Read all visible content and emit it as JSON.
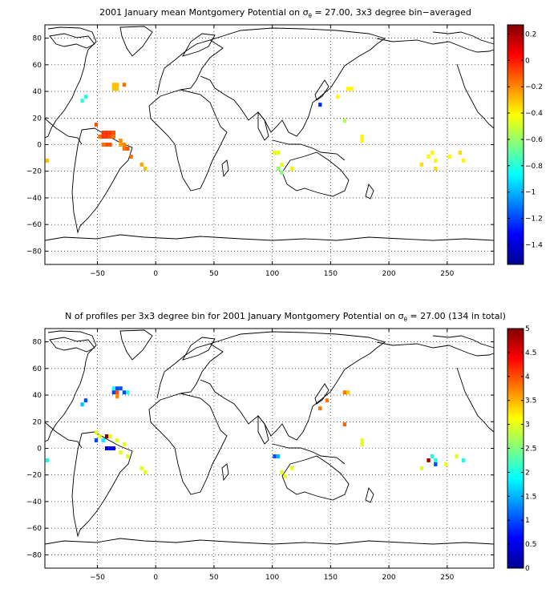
{
  "chart_data": [
    {
      "type": "heatmap",
      "title_pre": "2001 January mean Montgomery Potential on ",
      "title_sym": "σ",
      "title_sub": "θ",
      "title_post": " = 27.00, 3x3 degree bin−averaged",
      "xlim": [
        -95,
        290
      ],
      "ylim": [
        -90,
        90
      ],
      "xticks": [
        -50,
        0,
        50,
        100,
        150,
        200,
        250
      ],
      "xtick_labels": [
        "−50",
        "0",
        "50",
        "100",
        "150",
        "200",
        "250"
      ],
      "yticks": [
        80,
        60,
        40,
        20,
        0,
        -20,
        -40,
        -60,
        -80
      ],
      "ytick_labels": [
        "80",
        "60",
        "40",
        "20",
        "0",
        "−20",
        "−40",
        "−60",
        "−80"
      ],
      "grid": true,
      "colormap": "jet",
      "clim": [
        -1.55,
        0.27
      ],
      "colorbar_ticks": [
        0.2,
        0,
        -0.2,
        -0.4,
        -0.6,
        -0.8,
        -1,
        -1.2,
        -1.4
      ],
      "colorbar_labels": [
        "0.2",
        "0",
        "−0.2",
        "−0.4",
        "−0.6",
        "−0.8",
        "−1",
        "−1.2",
        "−1.4"
      ],
      "cells": [
        {
          "lon": -36,
          "lat": 45,
          "v": -0.3
        },
        {
          "lon": -33,
          "lat": 45,
          "v": -0.3
        },
        {
          "lon": -27,
          "lat": 45,
          "v": -0.15
        },
        {
          "lon": -36,
          "lat": 42,
          "v": -0.3
        },
        {
          "lon": -33,
          "lat": 42,
          "v": -0.3
        },
        {
          "lon": -60,
          "lat": 36,
          "v": -0.8
        },
        {
          "lon": -63,
          "lat": 33,
          "v": -0.8
        },
        {
          "lon": -51,
          "lat": 15,
          "v": -0.1
        },
        {
          "lon": -45,
          "lat": 9,
          "v": -0.05
        },
        {
          "lon": -42,
          "lat": 9,
          "v": -0.05
        },
        {
          "lon": -39,
          "lat": 9,
          "v": -0.05
        },
        {
          "lon": -36,
          "lat": 9,
          "v": -0.1
        },
        {
          "lon": -48,
          "lat": 6,
          "v": -0.15
        },
        {
          "lon": -45,
          "lat": 6,
          "v": -0.05
        },
        {
          "lon": -42,
          "lat": 6,
          "v": -0.05
        },
        {
          "lon": -39,
          "lat": 6,
          "v": -0.1
        },
        {
          "lon": -36,
          "lat": 6,
          "v": -0.15
        },
        {
          "lon": -45,
          "lat": 0,
          "v": -0.15
        },
        {
          "lon": -42,
          "lat": 0,
          "v": -0.1
        },
        {
          "lon": -39,
          "lat": 0,
          "v": -0.1
        },
        {
          "lon": -30,
          "lat": 3,
          "v": -0.2
        },
        {
          "lon": -27,
          "lat": 0,
          "v": -0.2
        },
        {
          "lon": -30,
          "lat": 0,
          "v": -0.25
        },
        {
          "lon": -27,
          "lat": -3,
          "v": -0.15
        },
        {
          "lon": -24,
          "lat": -3,
          "v": -0.1
        },
        {
          "lon": -21,
          "lat": -9,
          "v": -0.15
        },
        {
          "lon": -12,
          "lat": -15,
          "v": -0.25
        },
        {
          "lon": -9,
          "lat": -18,
          "v": -0.3
        },
        {
          "lon": -93,
          "lat": -12,
          "v": -0.3
        },
        {
          "lon": 141,
          "lat": 30,
          "v": -1.25
        },
        {
          "lon": 156,
          "lat": 36,
          "v": -0.4
        },
        {
          "lon": 165,
          "lat": 42,
          "v": -0.4
        },
        {
          "lon": 168,
          "lat": 42,
          "v": -0.4
        },
        {
          "lon": 162,
          "lat": 18,
          "v": -0.55
        },
        {
          "lon": 177,
          "lat": 6,
          "v": -0.4
        },
        {
          "lon": 177,
          "lat": 3,
          "v": -0.4
        },
        {
          "lon": 102,
          "lat": -6,
          "v": -0.45
        },
        {
          "lon": 105,
          "lat": -6,
          "v": -0.45
        },
        {
          "lon": 108,
          "lat": -15,
          "v": -0.45
        },
        {
          "lon": 105,
          "lat": -18,
          "v": -0.6
        },
        {
          "lon": 108,
          "lat": -21,
          "v": -0.65
        },
        {
          "lon": 117,
          "lat": -18,
          "v": -0.4
        },
        {
          "lon": 237,
          "lat": -6,
          "v": -0.4
        },
        {
          "lon": 234,
          "lat": -9,
          "v": -0.4
        },
        {
          "lon": 240,
          "lat": -12,
          "v": -0.4
        },
        {
          "lon": 228,
          "lat": -15,
          "v": -0.35
        },
        {
          "lon": 240,
          "lat": -18,
          "v": -0.35
        },
        {
          "lon": 252,
          "lat": -9,
          "v": -0.4
        },
        {
          "lon": 261,
          "lat": -6,
          "v": -0.35
        },
        {
          "lon": 264,
          "lat": -12,
          "v": -0.4
        }
      ]
    },
    {
      "type": "heatmap",
      "title_pre": "N of profiles per 3x3 degree bin for 2001 January Montgomery Potential on ",
      "title_sym": "σ",
      "title_sub": "θ",
      "title_post": " = 27.00 (134 in total)",
      "xlim": [
        -95,
        290
      ],
      "ylim": [
        -90,
        90
      ],
      "xticks": [
        -50,
        0,
        50,
        100,
        150,
        200,
        250
      ],
      "xtick_labels": [
        "−50",
        "0",
        "50",
        "100",
        "150",
        "200",
        "250"
      ],
      "yticks": [
        80,
        60,
        40,
        20,
        0,
        -20,
        -40,
        -60,
        -80
      ],
      "ytick_labels": [
        "80",
        "60",
        "40",
        "20",
        "0",
        "−20",
        "−40",
        "−60",
        "−80"
      ],
      "grid": true,
      "colormap": "jet",
      "clim": [
        0,
        5
      ],
      "colorbar_ticks": [
        5,
        4.5,
        4,
        3.5,
        3,
        2.5,
        2,
        1.5,
        1,
        0.5,
        0
      ],
      "colorbar_labels": [
        "5",
        "4.5",
        "4",
        "3.5",
        "3",
        "2.5",
        "2",
        "1.5",
        "1",
        "0.5",
        "0"
      ],
      "cells": [
        {
          "lon": -36,
          "lat": 45,
          "v": 2
        },
        {
          "lon": -33,
          "lat": 45,
          "v": 1
        },
        {
          "lon": -30,
          "lat": 45,
          "v": 1
        },
        {
          "lon": -27,
          "lat": 42,
          "v": 1
        },
        {
          "lon": -24,
          "lat": 42,
          "v": 2
        },
        {
          "lon": -36,
          "lat": 42,
          "v": 1
        },
        {
          "lon": -33,
          "lat": 42,
          "v": 4
        },
        {
          "lon": -33,
          "lat": 39,
          "v": 3.7
        },
        {
          "lon": -60,
          "lat": 36,
          "v": 1
        },
        {
          "lon": -63,
          "lat": 33,
          "v": 1.6
        },
        {
          "lon": -51,
          "lat": 12,
          "v": 3
        },
        {
          "lon": -48,
          "lat": 9,
          "v": 3
        },
        {
          "lon": -42,
          "lat": 9,
          "v": 5
        },
        {
          "lon": -39,
          "lat": 9,
          "v": 3
        },
        {
          "lon": -33,
          "lat": 6,
          "v": 3
        },
        {
          "lon": -27,
          "lat": 3,
          "v": 3
        },
        {
          "lon": -51,
          "lat": 6,
          "v": 1
        },
        {
          "lon": -45,
          "lat": 6,
          "v": 1.8
        },
        {
          "lon": -42,
          "lat": 0,
          "v": 0.5
        },
        {
          "lon": -39,
          "lat": 0,
          "v": 0.5
        },
        {
          "lon": -36,
          "lat": 0,
          "v": 0.5
        },
        {
          "lon": -30,
          "lat": -3,
          "v": 3
        },
        {
          "lon": -24,
          "lat": -6,
          "v": 3
        },
        {
          "lon": -12,
          "lat": -15,
          "v": 3
        },
        {
          "lon": -9,
          "lat": -18,
          "v": 3
        },
        {
          "lon": -93,
          "lat": -9,
          "v": 2
        },
        {
          "lon": 141,
          "lat": 30,
          "v": 3.8
        },
        {
          "lon": 147,
          "lat": 36,
          "v": 3.8
        },
        {
          "lon": 162,
          "lat": 42,
          "v": 3.8
        },
        {
          "lon": 165,
          "lat": 42,
          "v": 3.4
        },
        {
          "lon": 162,
          "lat": 18,
          "v": 3.9
        },
        {
          "lon": 177,
          "lat": 6,
          "v": 3
        },
        {
          "lon": 177,
          "lat": 3,
          "v": 3
        },
        {
          "lon": 102,
          "lat": -6,
          "v": 1
        },
        {
          "lon": 105,
          "lat": -6,
          "v": 1.5
        },
        {
          "lon": 108,
          "lat": -18,
          "v": 3
        },
        {
          "lon": 111,
          "lat": -21,
          "v": 3
        },
        {
          "lon": 117,
          "lat": -15,
          "v": 3
        },
        {
          "lon": 237,
          "lat": -6,
          "v": 2
        },
        {
          "lon": 234,
          "lat": -9,
          "v": 4.8
        },
        {
          "lon": 240,
          "lat": -9,
          "v": 2
        },
        {
          "lon": 240,
          "lat": -12,
          "v": 1
        },
        {
          "lon": 228,
          "lat": -15,
          "v": 3
        },
        {
          "lon": 249,
          "lat": -12,
          "v": 3
        },
        {
          "lon": 258,
          "lat": -6,
          "v": 3
        },
        {
          "lon": 264,
          "lat": -9,
          "v": 2
        }
      ]
    }
  ]
}
